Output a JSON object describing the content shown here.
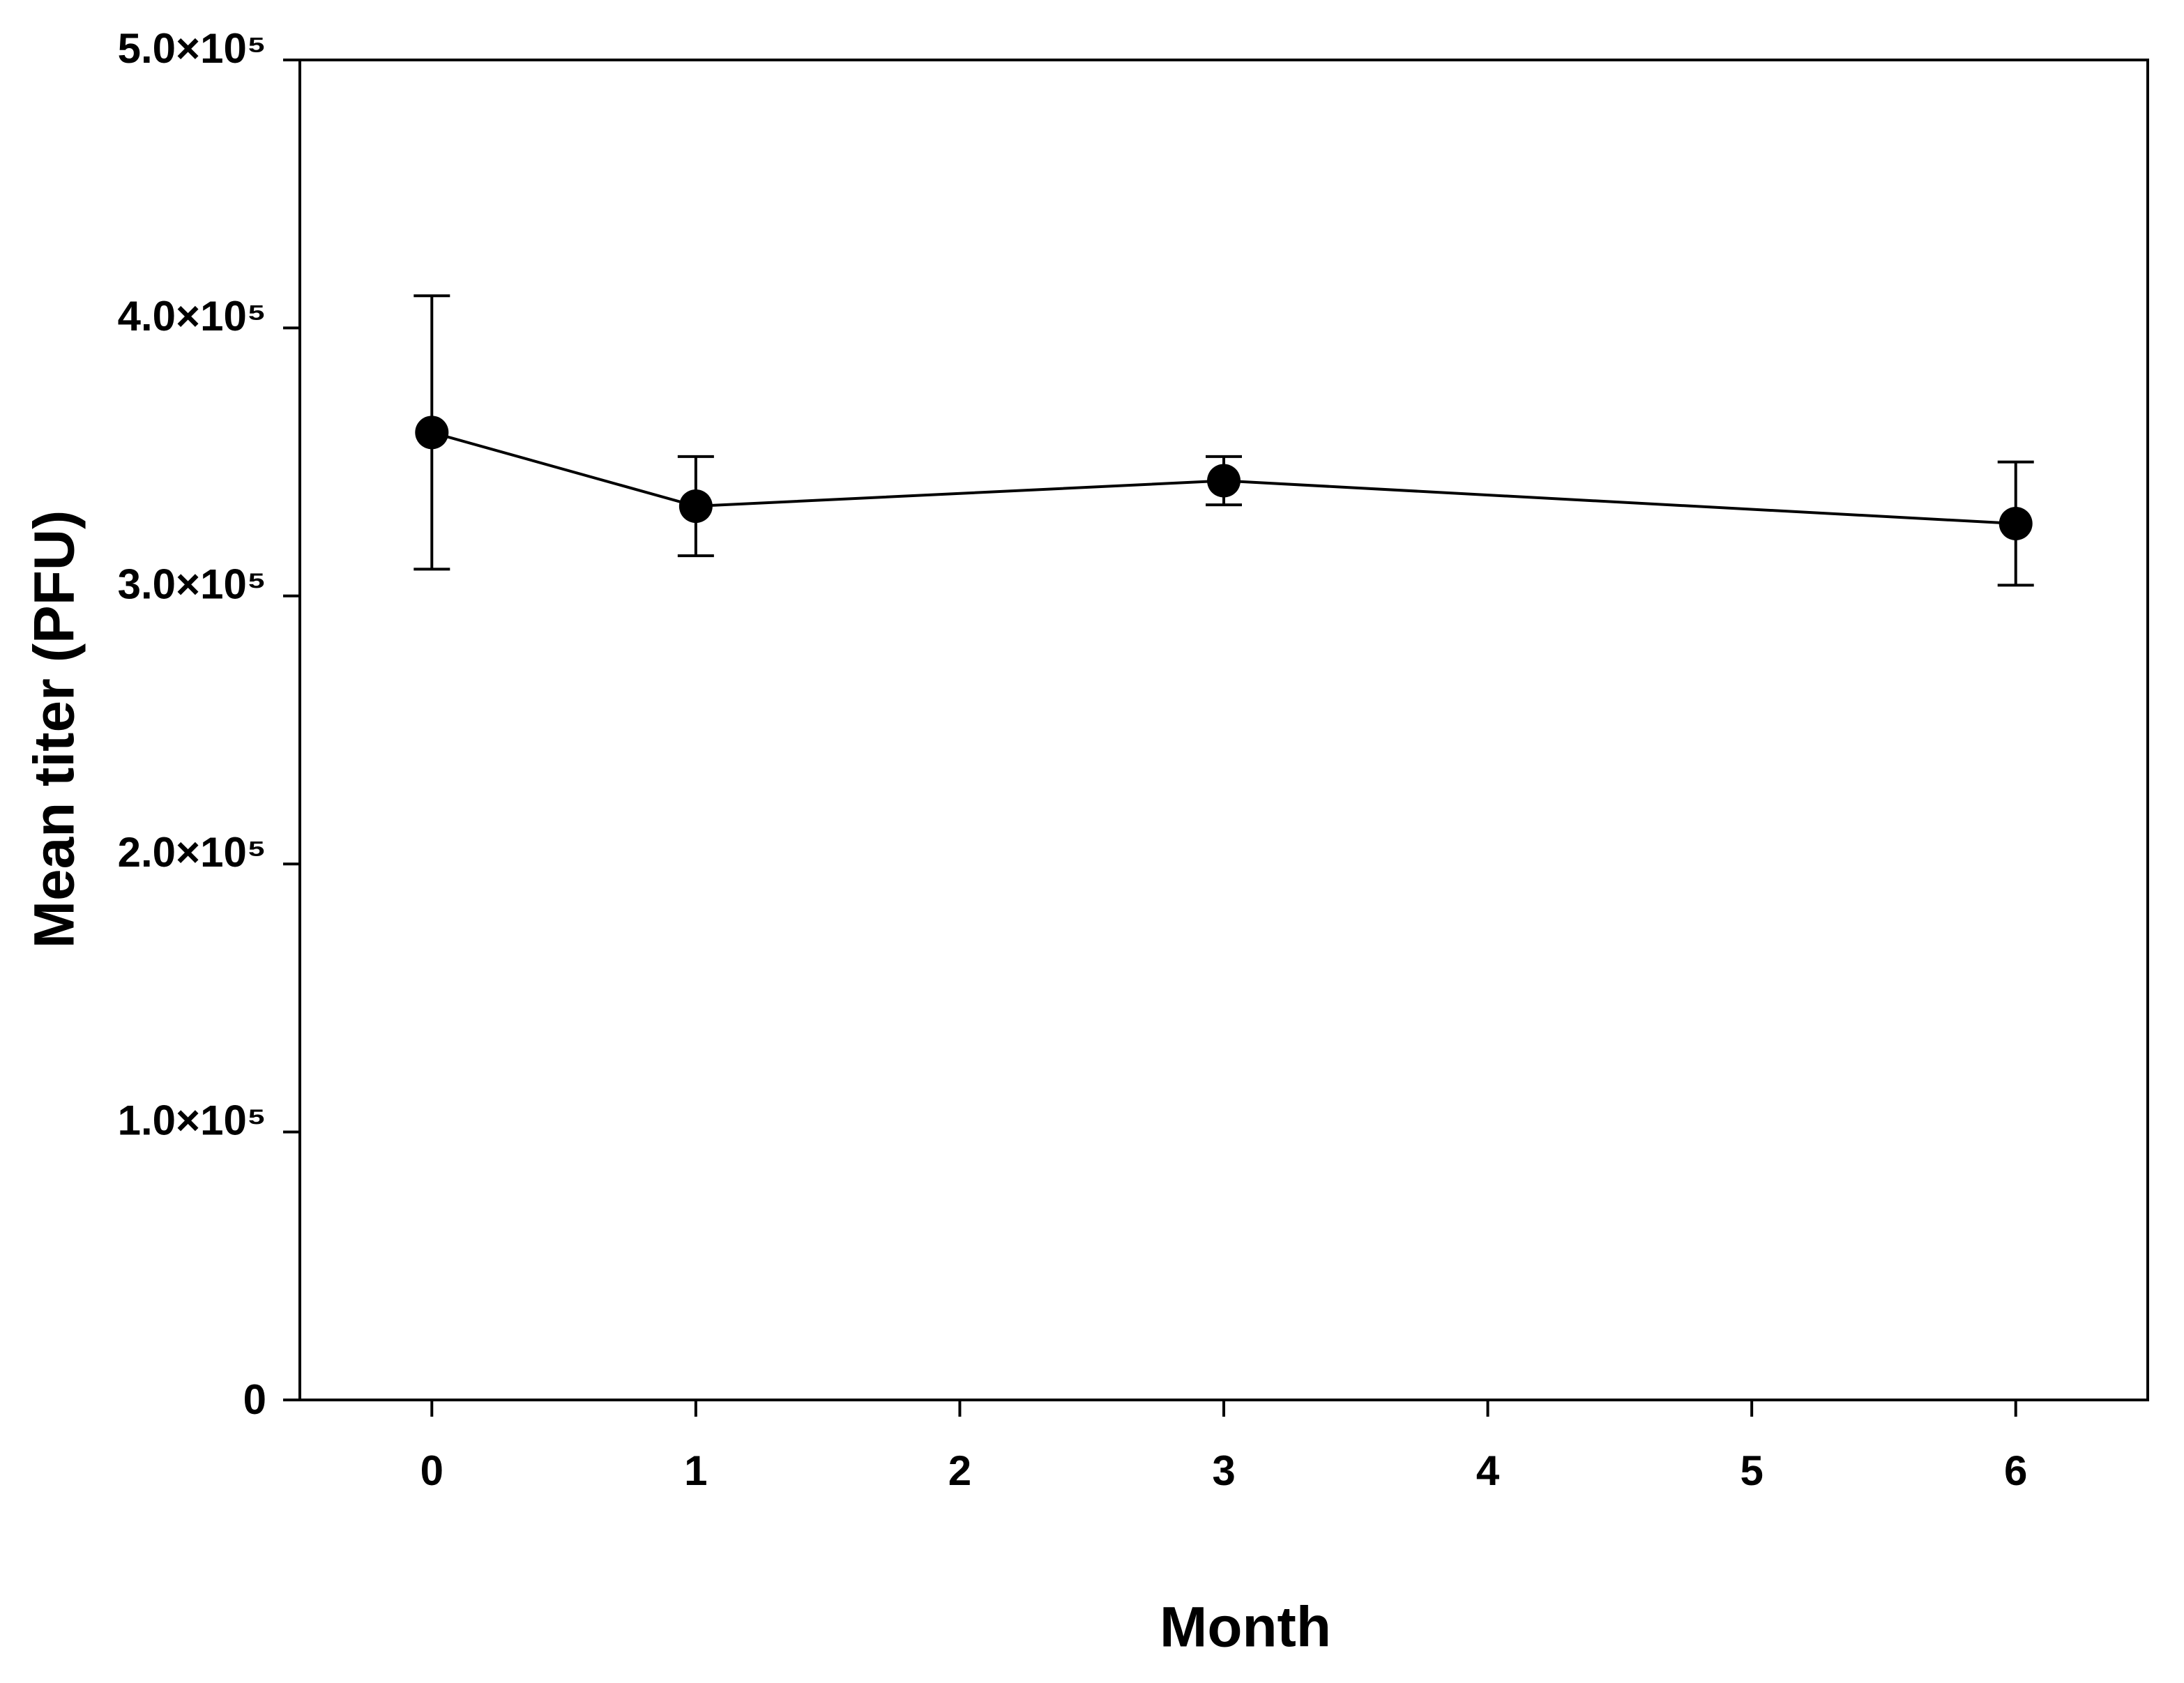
{
  "chart_data": {
    "type": "line",
    "x_label": "Month",
    "y_label": "Mean titer (PFU)",
    "x": [
      0,
      1,
      3,
      6
    ],
    "values": [
      361000,
      333500,
      343000,
      327000
    ],
    "errors": [
      51000,
      18500,
      9000,
      23000
    ],
    "color": "#000000",
    "xlim": [
      -0.5,
      6.5
    ],
    "xticks": [
      0,
      1,
      2,
      3,
      4,
      5,
      6
    ],
    "ylim": [
      0,
      500000
    ],
    "yticks": [
      0,
      {
        "value": 100000,
        "label": "1.0×10⁵"
      },
      {
        "value": 200000,
        "label": "2.0×10⁵"
      },
      {
        "value": 300000,
        "label": "3.0×10⁵"
      },
      {
        "value": 400000,
        "label": "4.0×10⁵"
      },
      {
        "value": 500000,
        "label": "5.0×10⁵"
      }
    ],
    "grid": false
  }
}
